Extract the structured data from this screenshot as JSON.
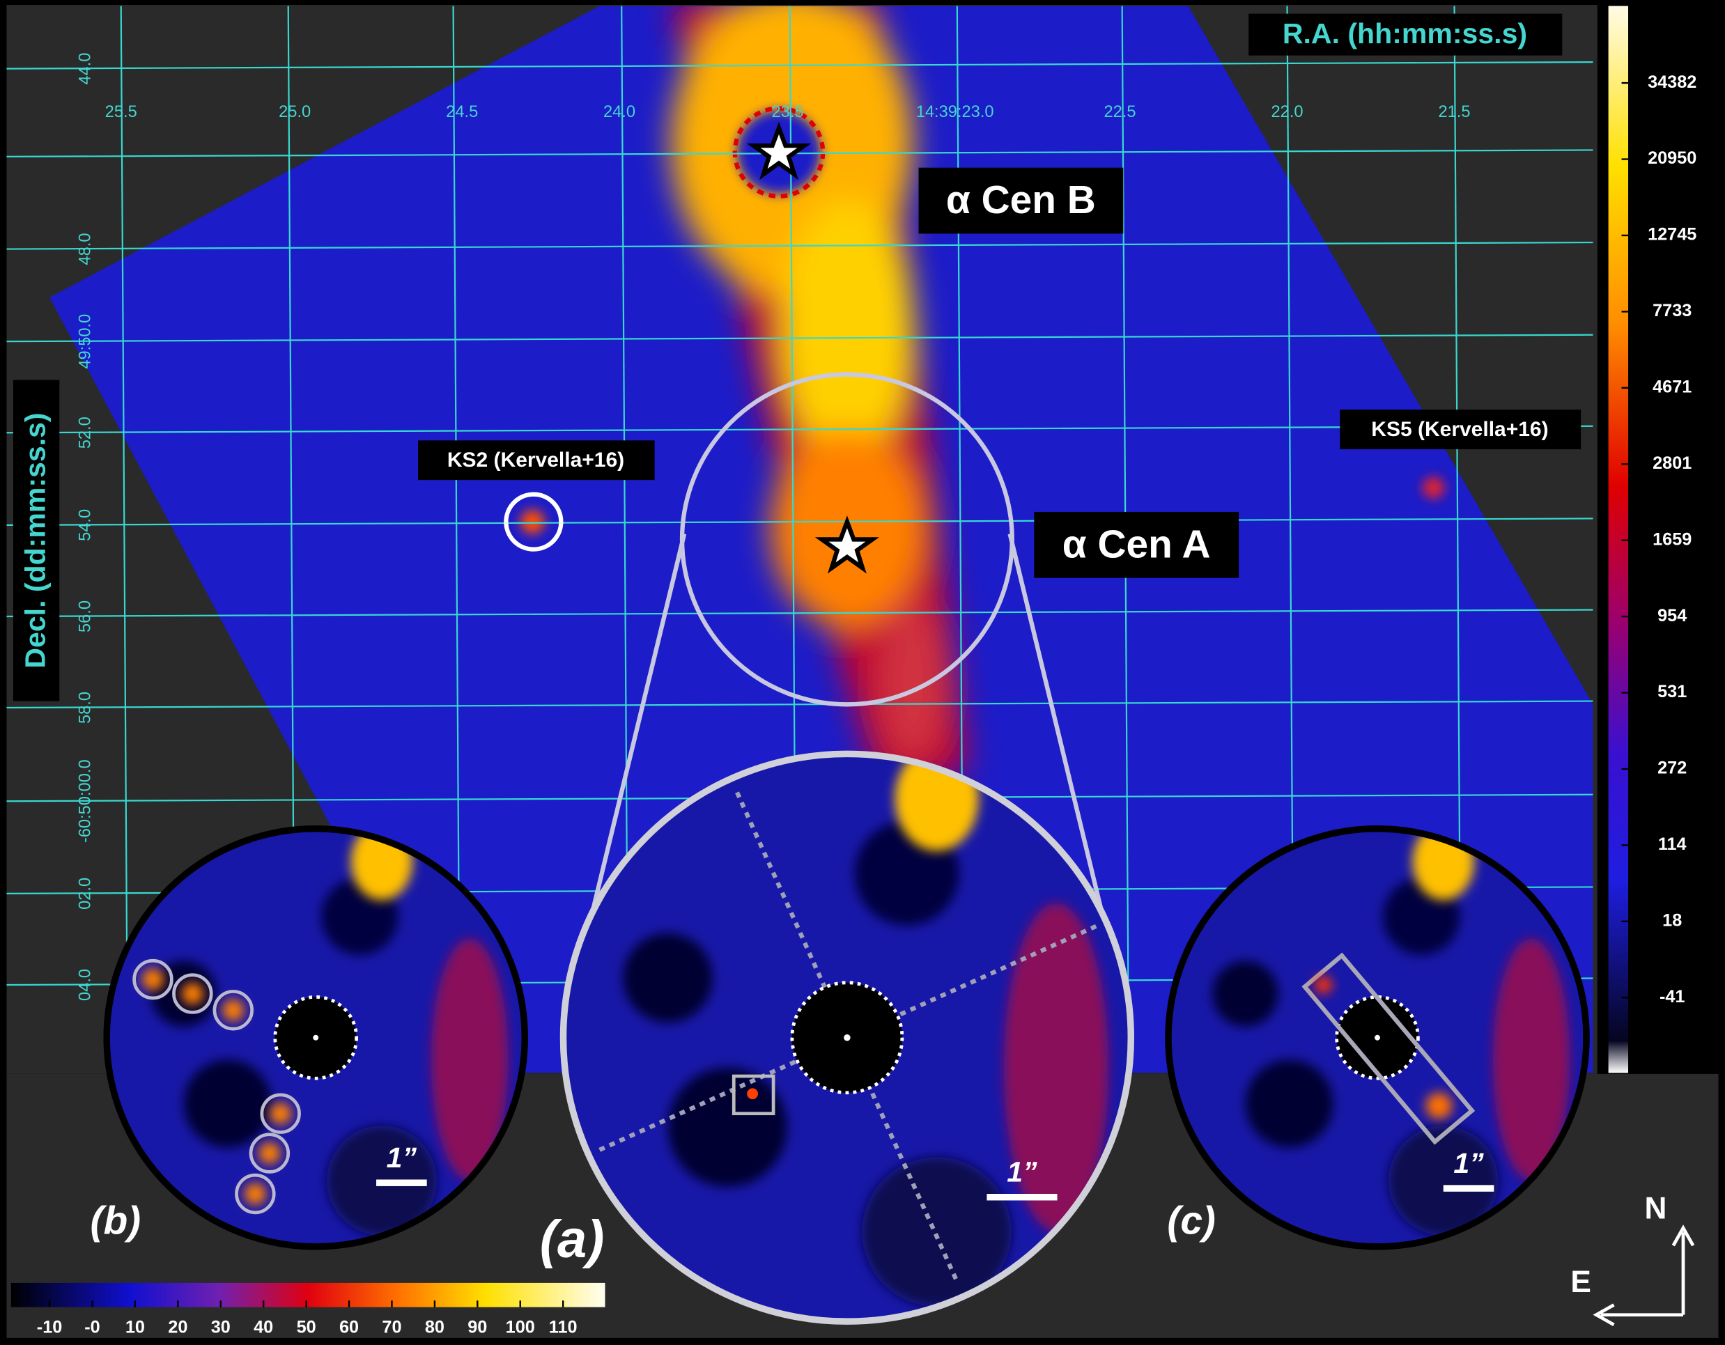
{
  "axes": {
    "ra_title": "R.A. (hh:mm:ss.s)",
    "dec_title": "Decl. (dd:mm:ss.s)",
    "ra_ticks": [
      "25.5",
      "25.0",
      "24.5",
      "24.0",
      "23.5",
      "14:39:23.0",
      "22.5",
      "22.0",
      "21.5"
    ],
    "dec_ticks": [
      "44.0",
      "48.0",
      "49:50.0",
      "52.0",
      "54.0",
      "56.0",
      "58.0",
      "-60:50:00.0",
      "02.0",
      "04.0"
    ]
  },
  "annotations": {
    "cen_b": "α Cen B",
    "cen_a": "α Cen A",
    "ks2": "KS2 (Kervella+16)",
    "ks5": "KS5 (Kervella+16)"
  },
  "colorbar_main": {
    "ticks": [
      "34382",
      "20950",
      "12745",
      "7733",
      "4671",
      "2801",
      "1659",
      "954",
      "531",
      "272",
      "114",
      "18",
      "-41"
    ]
  },
  "colorbar_inset": {
    "ticks": [
      "-10",
      "-0",
      "10",
      "20",
      "30",
      "40",
      "50",
      "60",
      "70",
      "80",
      "90",
      "100",
      "110"
    ]
  },
  "panels": {
    "a": {
      "label": "(a)",
      "scale": "1”"
    },
    "b": {
      "label": "(b)",
      "scale": "1”"
    },
    "c": {
      "label": "(c)",
      "scale": "1”"
    }
  },
  "compass": {
    "north": "N",
    "east": "E"
  }
}
